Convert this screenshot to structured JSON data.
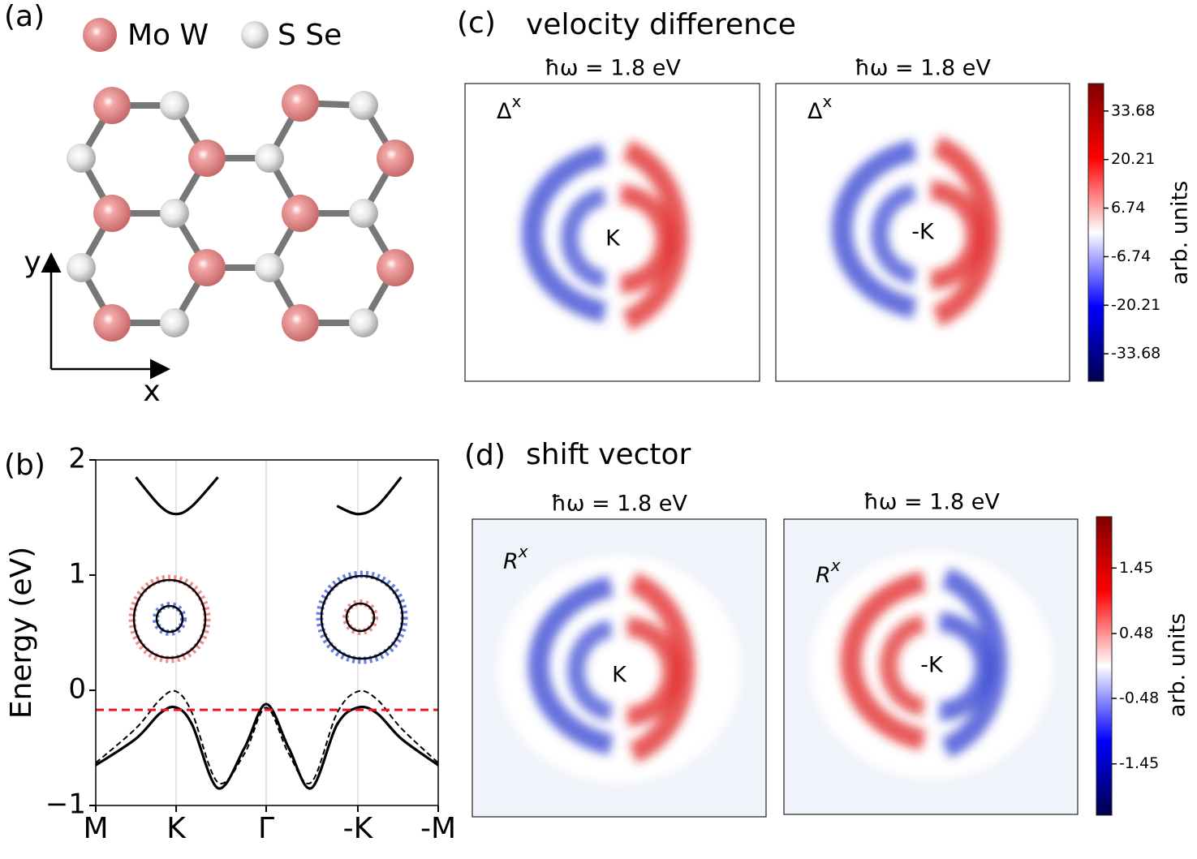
{
  "panel_a": {
    "label": "(a)",
    "legend": [
      "Mo W",
      "S Se"
    ],
    "axis_labels": {
      "x": "x",
      "y": "y"
    }
  },
  "chart_data": {
    "type": "line",
    "label": "(b)",
    "ylabel": "Energy (eV)",
    "x": [
      0,
      0.5,
      0.8,
      1,
      1.2,
      1.52,
      1.85,
      2.12,
      2.4,
      2.68,
      3.0,
      3.26,
      3.5,
      3.8,
      4.26
    ],
    "xlim": [
      0,
      4.26
    ],
    "xticks": [
      {
        "value": 0,
        "label": "M"
      },
      {
        "value": 1,
        "label": "K"
      },
      {
        "value": 2.12,
        "label": "Γ"
      },
      {
        "value": 3.26,
        "label": "-K"
      },
      {
        "value": 4.26,
        "label": "-M"
      }
    ],
    "ylim": [
      -1,
      2
    ],
    "yticks": [
      {
        "value": -1,
        "label": "−1"
      },
      0,
      1,
      2
    ],
    "fermi_level": -0.17,
    "fermi_color": "#e8191d",
    "series": [
      {
        "color": "#000000",
        "style": "solid",
        "values": [
          -0.65,
          -0.42,
          -0.2,
          -0.15,
          -0.3,
          -0.85,
          -0.5,
          -0.12,
          -0.5,
          -0.85,
          -0.3,
          -0.15,
          -0.2,
          -0.42,
          -0.65
        ]
      },
      {
        "color": "#000000",
        "style": "dashed",
        "values": [
          -0.63,
          -0.33,
          -0.08,
          -0.01,
          -0.2,
          -0.8,
          -0.55,
          -0.15,
          -0.55,
          -0.8,
          -0.2,
          -0.01,
          -0.08,
          -0.33,
          -0.63
        ]
      },
      {
        "color": "#000000",
        "style": "solid",
        "values": [
          null,
          1.85,
          1.6,
          1.53,
          1.6,
          1.85,
          null,
          null,
          null,
          null,
          1.6,
          1.53,
          1.6,
          1.85,
          null
        ]
      }
    ]
  },
  "panel_c": {
    "label": "(c)",
    "title": "velocity difference",
    "subplots": [
      {
        "title": "ħω = 1.8 eV",
        "quantity": {
          "base": "Δ",
          "sup": "x"
        },
        "valley": "K"
      },
      {
        "title": "ħω = 1.8 eV",
        "quantity": {
          "base": "Δ",
          "sup": "x"
        },
        "valley": "-K"
      }
    ],
    "colorbar": {
      "label": "arb. units",
      "lim": [
        -41.3,
        41.3
      ],
      "ticks": [
        33.68,
        20.21,
        6.74,
        -6.74,
        -20.21,
        -33.68
      ]
    }
  },
  "panel_d": {
    "label": "(d)",
    "title": "shift vector",
    "subplots": [
      {
        "title": "ħω = 1.8 eV",
        "quantity": {
          "base": "R",
          "sup": "x"
        },
        "valley": "K"
      },
      {
        "title": "ħω = 1.8 eV",
        "quantity": {
          "base": "R",
          "sup": "x"
        },
        "valley": "-K"
      }
    ],
    "colorbar": {
      "label": "arb. units",
      "lim": [
        -2.21,
        2.21
      ],
      "ticks": [
        1.45,
        0.48,
        -0.48,
        -1.45
      ]
    }
  }
}
